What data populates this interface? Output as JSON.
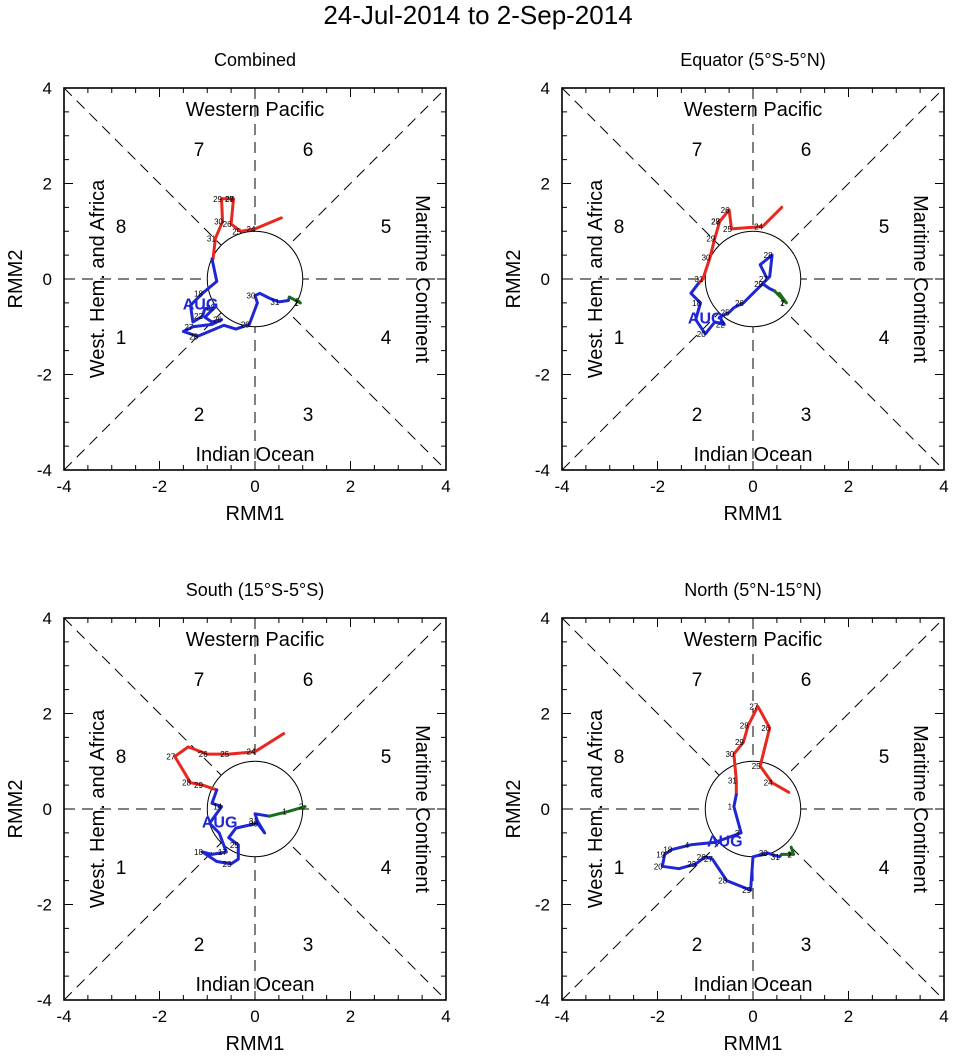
{
  "title": "24-Jul-2014 to 2-Sep-2014",
  "colors": {
    "july": "#e8271f",
    "august": "#1f27d4",
    "september": "#1a6b1a",
    "axis": "#000000"
  },
  "phase_labels": {
    "top": "Western Pacific",
    "bottom": "Indian Ocean",
    "left": "West. Hem. and Africa",
    "right": "Maritime Continent",
    "numbers": [
      "1",
      "2",
      "3",
      "4",
      "5",
      "6",
      "7",
      "8"
    ]
  },
  "month_label": "AUG",
  "chart_data": [
    {
      "type": "line",
      "title": "Combined",
      "xlabel": "RMM1",
      "ylabel": "RMM2",
      "xlim": [
        -4,
        4
      ],
      "ylim": [
        -4,
        4
      ],
      "ticks": [
        "-4",
        "-2",
        "0",
        "2",
        "4"
      ],
      "july": [
        [
          0.55,
          1.28
        ],
        [
          0.0,
          1.05
        ],
        [
          -0.3,
          1.0
        ],
        [
          -0.5,
          1.15
        ],
        [
          -0.45,
          1.68
        ],
        [
          -0.7,
          1.68
        ],
        [
          -0.68,
          1.2
        ],
        [
          -0.83,
          0.85
        ],
        [
          -0.88,
          0.42
        ]
      ],
      "july_days": [
        "24",
        "25",
        "26",
        "27",
        "28",
        "29",
        "30",
        "31"
      ],
      "august": [
        [
          -0.9,
          0.42
        ],
        [
          -0.8,
          -0.05
        ],
        [
          -1.1,
          -0.3
        ],
        [
          -1.35,
          -0.55
        ],
        [
          -1.3,
          -0.9
        ],
        [
          -1.1,
          -0.78
        ],
        [
          -1.05,
          -0.62
        ],
        [
          -0.85,
          -0.6
        ],
        [
          -1.05,
          -0.8
        ],
        [
          -0.9,
          -0.9
        ],
        [
          -0.7,
          -0.85
        ],
        [
          -0.9,
          -0.95
        ],
        [
          -1.3,
          -1.0
        ],
        [
          -1.5,
          -1.1
        ],
        [
          -1.2,
          -1.2
        ],
        [
          -0.65,
          -0.97
        ],
        [
          -0.4,
          -1.05
        ],
        [
          -0.12,
          -0.95
        ],
        [
          0.05,
          -0.5
        ],
        [
          0.0,
          -0.35
        ],
        [
          0.1,
          -0.3
        ],
        [
          0.3,
          -0.4
        ],
        [
          0.5,
          -0.48
        ],
        [
          0.7,
          -0.45
        ],
        [
          0.72,
          -0.38
        ]
      ],
      "august_days": [
        "18",
        "22",
        "23",
        "26",
        "27",
        "28",
        "29",
        "30",
        "31"
      ],
      "september": [
        [
          0.72,
          -0.38
        ],
        [
          0.95,
          -0.5
        ],
        [
          0.88,
          -0.43
        ]
      ],
      "september_days": [
        "1",
        "2"
      ]
    },
    {
      "type": "line",
      "title": "Equator (5°S-5°N)",
      "xlabel": "RMM1",
      "ylabel": "RMM2",
      "xlim": [
        -4,
        4
      ],
      "ylim": [
        -4,
        4
      ],
      "ticks": [
        "-4",
        "-2",
        "0",
        "2",
        "4"
      ],
      "july": [
        [
          0.6,
          1.5
        ],
        [
          0.2,
          1.1
        ],
        [
          -0.45,
          1.05
        ],
        [
          -0.5,
          1.45
        ],
        [
          -0.7,
          1.2
        ],
        [
          -0.8,
          0.85
        ],
        [
          -0.9,
          0.45
        ],
        [
          -1.05,
          0.0
        ],
        [
          -1.15,
          -0.1
        ]
      ],
      "july_days": [
        "24",
        "25",
        "26",
        "27",
        "28",
        "29",
        "30",
        "31"
      ],
      "august": [
        [
          -1.15,
          -0.1
        ],
        [
          -1.3,
          -0.3
        ],
        [
          -1.1,
          -0.5
        ],
        [
          -1.2,
          -0.85
        ],
        [
          -1.0,
          -1.15
        ],
        [
          -0.8,
          -0.9
        ],
        [
          -0.6,
          -0.95
        ],
        [
          -0.7,
          -0.8
        ],
        [
          -0.5,
          -0.7
        ],
        [
          -0.4,
          -0.6
        ],
        [
          -0.2,
          -0.5
        ],
        [
          0.1,
          -0.2
        ],
        [
          0.3,
          0.0
        ],
        [
          0.15,
          0.3
        ],
        [
          0.4,
          0.5
        ],
        [
          0.35,
          0.05
        ],
        [
          0.2,
          -0.1
        ],
        [
          0.35,
          -0.2
        ],
        [
          0.45,
          -0.25
        ]
      ],
      "august_days": [
        "18",
        "20",
        "22",
        "25",
        "26",
        "27",
        "28",
        "29"
      ],
      "september": [
        [
          0.45,
          -0.25
        ],
        [
          0.7,
          -0.5
        ],
        [
          0.55,
          -0.3
        ]
      ],
      "september_days": [
        "1",
        "2"
      ]
    },
    {
      "type": "line",
      "title": "South (15°S-5°S)",
      "xlabel": "RMM1",
      "ylabel": "RMM2",
      "xlim": [
        -4,
        4
      ],
      "ylim": [
        -4,
        4
      ],
      "ticks": [
        "-4",
        "-2",
        "0",
        "2",
        "4"
      ],
      "july": [
        [
          0.6,
          1.58
        ],
        [
          0.0,
          1.2
        ],
        [
          -0.55,
          1.15
        ],
        [
          -1.0,
          1.15
        ],
        [
          -1.4,
          1.3
        ],
        [
          -1.68,
          1.1
        ],
        [
          -1.35,
          0.55
        ],
        [
          -1.1,
          0.5
        ],
        [
          -0.8,
          0.4
        ]
      ],
      "july_days": [
        "24",
        "25",
        "26",
        "27",
        "28",
        "29"
      ],
      "august": [
        [
          -0.8,
          0.4
        ],
        [
          -0.9,
          0.12
        ],
        [
          -0.7,
          0.05
        ],
        [
          -0.95,
          -0.3
        ],
        [
          -0.75,
          -0.5
        ],
        [
          -0.6,
          -0.9
        ],
        [
          -0.9,
          -0.95
        ],
        [
          -1.1,
          -0.9
        ],
        [
          -0.8,
          -1.1
        ],
        [
          -0.5,
          -1.15
        ],
        [
          -0.35,
          -1.05
        ],
        [
          -0.35,
          -0.75
        ],
        [
          -0.55,
          -0.6
        ],
        [
          -0.4,
          -0.4
        ],
        [
          0.05,
          -0.3
        ],
        [
          0.2,
          -0.5
        ],
        [
          0.05,
          -0.25
        ],
        [
          0.0,
          -0.1
        ],
        [
          0.3,
          -0.15
        ]
      ],
      "august_days": [
        "14",
        "17",
        "18",
        "23",
        "25",
        "30",
        "31"
      ],
      "september": [
        [
          0.3,
          -0.15
        ],
        [
          0.7,
          -0.05
        ],
        [
          1.05,
          0.05
        ],
        [
          0.95,
          0.02
        ]
      ],
      "september_days": [
        "1",
        "2"
      ]
    },
    {
      "type": "line",
      "title": "North (5°N-15°N)",
      "xlabel": "RMM1",
      "ylabel": "RMM2",
      "xlim": [
        -4,
        4
      ],
      "ylim": [
        -4,
        4
      ],
      "ticks": [
        "-4",
        "-2",
        "0",
        "2",
        "4"
      ],
      "july": [
        [
          0.75,
          0.35
        ],
        [
          0.4,
          0.55
        ],
        [
          0.15,
          0.9
        ],
        [
          0.35,
          1.7
        ],
        [
          0.1,
          2.15
        ],
        [
          -0.1,
          1.75
        ],
        [
          -0.2,
          1.4
        ],
        [
          -0.4,
          1.15
        ],
        [
          -0.35,
          0.6
        ],
        [
          -0.35,
          0.3
        ]
      ],
      "july_days": [
        "24",
        "25",
        "26",
        "27",
        "28",
        "29",
        "30",
        "31"
      ],
      "august": [
        [
          -0.35,
          0.3
        ],
        [
          -0.4,
          0.05
        ],
        [
          -0.25,
          -0.5
        ],
        [
          -0.8,
          -0.7
        ],
        [
          -1.3,
          -0.75
        ],
        [
          -1.7,
          -0.85
        ],
        [
          -1.85,
          -0.95
        ],
        [
          -1.9,
          -1.2
        ],
        [
          -1.55,
          -1.25
        ],
        [
          -1.2,
          -1.15
        ],
        [
          -1.0,
          -1.0
        ],
        [
          -0.85,
          -1.05
        ],
        [
          -0.55,
          -1.5
        ],
        [
          -0.05,
          -1.7
        ],
        [
          0.0,
          -1.0
        ],
        [
          0.3,
          -0.92
        ],
        [
          0.55,
          -1.0
        ],
        [
          0.6,
          -0.95
        ]
      ],
      "august_days": [
        "1",
        "3",
        "4",
        "18",
        "19",
        "20",
        "23",
        "26",
        "27",
        "28",
        "29",
        "30",
        "31"
      ],
      "september": [
        [
          0.6,
          -0.95
        ],
        [
          0.85,
          -0.95
        ],
        [
          0.8,
          -0.8
        ]
      ],
      "september_days": [
        "1",
        "2"
      ]
    }
  ]
}
